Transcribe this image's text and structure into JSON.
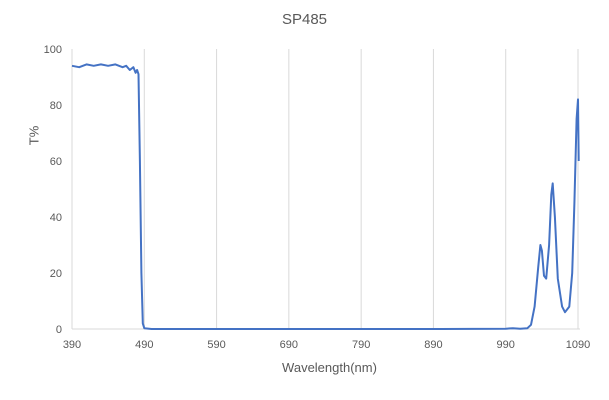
{
  "chart_data": {
    "type": "line",
    "title": "SP485",
    "xlabel": "Wavelength(nm)",
    "ylabel": "T%",
    "xlim": [
      390,
      1090
    ],
    "ylim": [
      0,
      100
    ],
    "x_ticks": [
      390,
      490,
      590,
      690,
      790,
      890,
      990,
      1090
    ],
    "y_ticks": [
      0,
      20,
      40,
      60,
      80,
      100
    ],
    "grid": {
      "vertical": true,
      "horizontal": false
    },
    "legend": "none",
    "line_color": "#4472c4",
    "series": [
      {
        "name": "SP485",
        "x": [
          390,
          400,
          410,
          420,
          430,
          440,
          450,
          460,
          465,
          470,
          475,
          478,
          480,
          482,
          484,
          486,
          488,
          490,
          500,
          600,
          700,
          800,
          900,
          990,
          1000,
          1010,
          1020,
          1025,
          1030,
          1035,
          1038,
          1040,
          1043,
          1046,
          1050,
          1053,
          1055,
          1058,
          1062,
          1068,
          1072,
          1078,
          1082,
          1085,
          1088,
          1090,
          1091
        ],
        "values": [
          94,
          93.5,
          94.5,
          94,
          94.5,
          94,
          94.5,
          93.5,
          94,
          92.5,
          93.5,
          91.5,
          92.5,
          91,
          60,
          20,
          2,
          0.3,
          0,
          0,
          0,
          0,
          0,
          0.1,
          0.3,
          0.1,
          0.3,
          1.5,
          8,
          22,
          30,
          28,
          19,
          18,
          30,
          48,
          52,
          40,
          18,
          8,
          6,
          8,
          20,
          45,
          75,
          82,
          60
        ]
      }
    ]
  }
}
